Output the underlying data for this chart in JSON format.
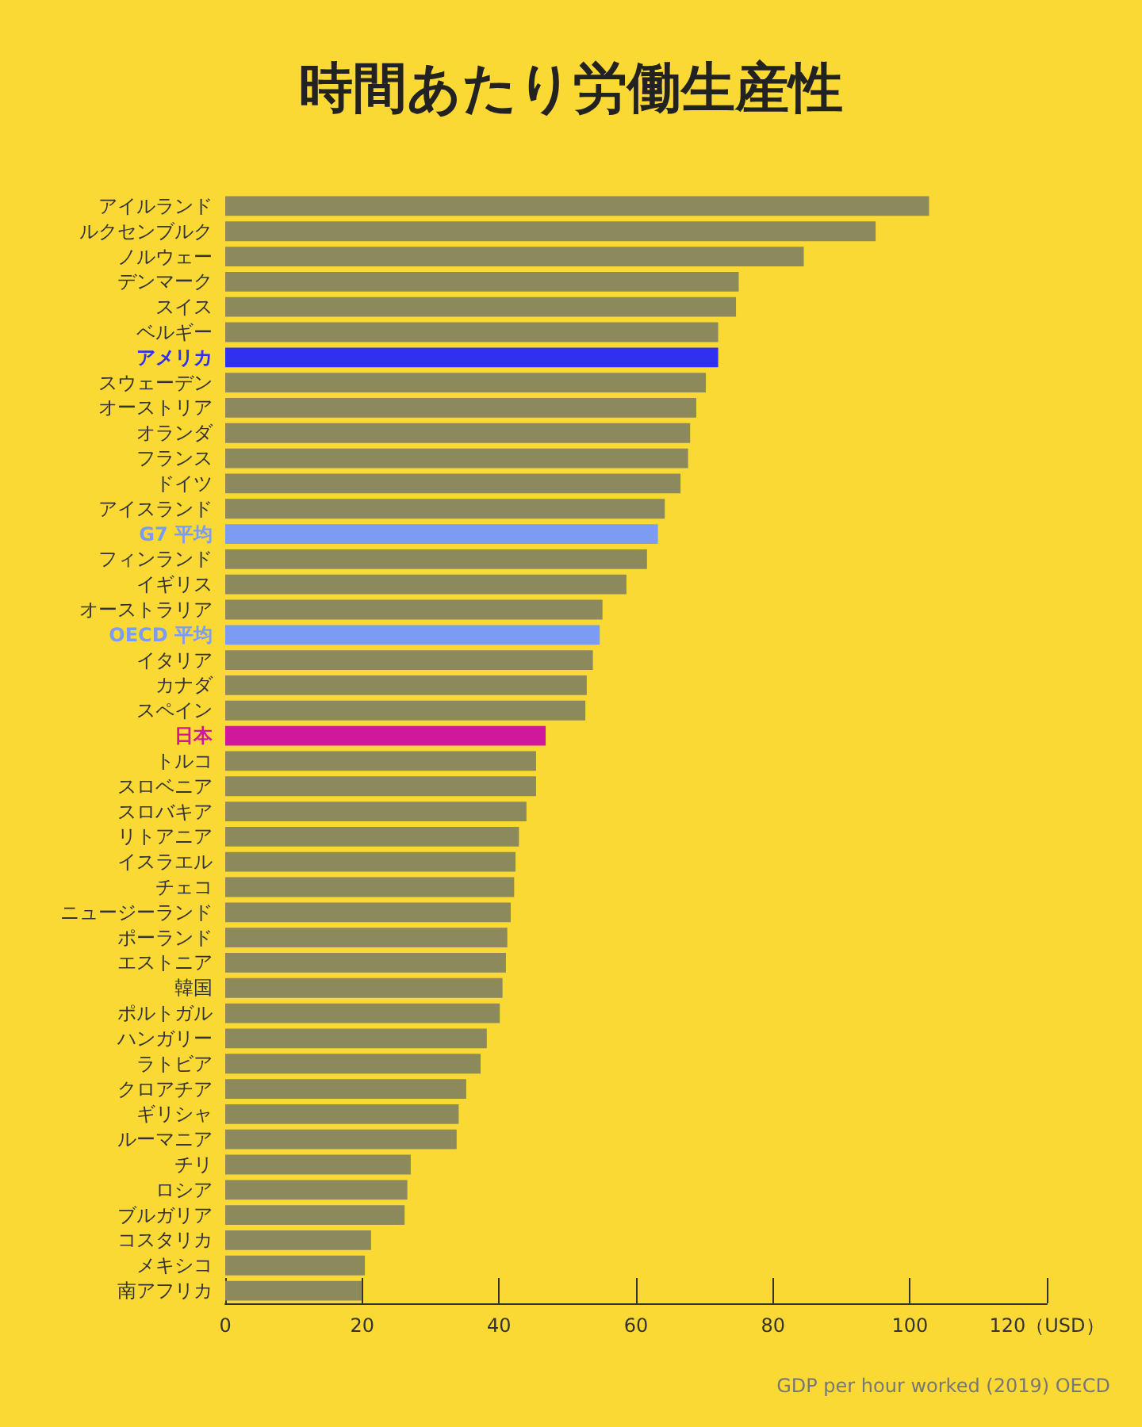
{
  "chart_data": {
    "type": "bar",
    "orientation": "horizontal",
    "title": "時間あたり労働生産性",
    "categories": [
      "アイルランド",
      "ルクセンブルク",
      "ノルウェー",
      "デンマーク",
      "スイス",
      "ベルギー",
      "アメリカ",
      "スウェーデン",
      "オーストリア",
      "オランダ",
      "フランス",
      "ドイツ",
      "アイスランド",
      "G7 平均",
      "フィンランド",
      "イギリス",
      "オーストラリア",
      "OECD 平均",
      "イタリア",
      "カナダ",
      "スペイン",
      "日本",
      "トルコ",
      "スロベニア",
      "スロバキア",
      "リトアニア",
      "イスラエル",
      "チェコ",
      "ニュージーランド",
      "ポーランド",
      "エストニア",
      "韓国",
      "ポルトガル",
      "ハンガリー",
      "ラトビア",
      "クロアチア",
      "ギリシャ",
      "ルーマニア",
      "チリ",
      "ロシア",
      "ブルガリア",
      "コスタリカ",
      "メキシコ",
      "南アフリカ"
    ],
    "values": [
      102.8,
      95.0,
      84.5,
      75.0,
      74.6,
      72.0,
      72.0,
      70.2,
      68.8,
      67.9,
      67.6,
      66.5,
      64.2,
      63.2,
      61.6,
      58.6,
      55.1,
      54.7,
      53.7,
      52.8,
      52.6,
      46.8,
      45.4,
      45.4,
      44.0,
      42.9,
      42.4,
      42.2,
      41.7,
      41.2,
      41.0,
      40.5,
      40.1,
      38.2,
      37.3,
      35.2,
      34.1,
      33.8,
      27.1,
      26.6,
      26.2,
      21.3,
      20.4,
      19.9
    ],
    "colors": [
      "#8c8a5c",
      "#8c8a5c",
      "#8c8a5c",
      "#8c8a5c",
      "#8c8a5c",
      "#8c8a5c",
      "#3030f0",
      "#8c8a5c",
      "#8c8a5c",
      "#8c8a5c",
      "#8c8a5c",
      "#8c8a5c",
      "#8c8a5c",
      "#7b9cf2",
      "#8c8a5c",
      "#8c8a5c",
      "#8c8a5c",
      "#7b9cf2",
      "#8c8a5c",
      "#8c8a5c",
      "#8c8a5c",
      "#d0189c",
      "#8c8a5c",
      "#8c8a5c",
      "#8c8a5c",
      "#8c8a5c",
      "#8c8a5c",
      "#8c8a5c",
      "#8c8a5c",
      "#8c8a5c",
      "#8c8a5c",
      "#8c8a5c",
      "#8c8a5c",
      "#8c8a5c",
      "#8c8a5c",
      "#8c8a5c",
      "#8c8a5c",
      "#8c8a5c",
      "#8c8a5c",
      "#8c8a5c",
      "#8c8a5c",
      "#8c8a5c",
      "#8c8a5c",
      "#8c8a5c"
    ],
    "xlim": [
      0,
      120
    ],
    "xticks": [
      0,
      20,
      40,
      60,
      80,
      100,
      {
        "value": 120,
        "label": "120（USD）"
      }
    ],
    "grid": false,
    "annotations": [
      "GDP per hour worked (2019) OECD"
    ]
  }
}
